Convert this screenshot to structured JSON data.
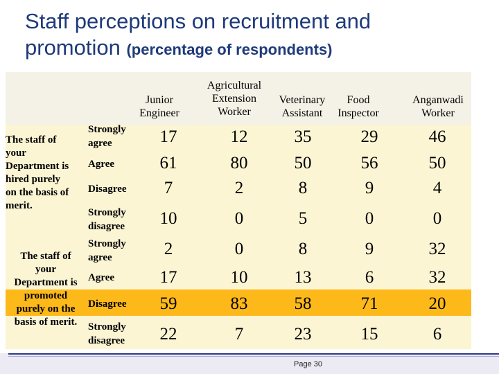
{
  "title": {
    "line1": "Staff perceptions  on recruitment and",
    "line2_big": "promotion ",
    "line2_small": "(percentage of respondents)"
  },
  "columns": [
    "Junior Engineer",
    "Agricultural Extension Worker",
    "Veterinary Assistant",
    "Food Inspector",
    "Anganwadi Worker"
  ],
  "header_lines": {
    "junior": [
      "Junior",
      "Engineer"
    ],
    "agri": [
      "Agricultural",
      "Extension",
      "Worker"
    ],
    "vet": [
      "Veterinary",
      "Assistant"
    ],
    "food": [
      "Food",
      "Inspector"
    ],
    "angan": [
      "Anganwadi",
      "Worker"
    ]
  },
  "groups": [
    {
      "category_lines": [
        "The staff of",
        "your",
        "Department is",
        "hired purely",
        "on the basis of",
        "merit."
      ],
      "rows": [
        {
          "response": "Strongly agree",
          "values": [
            17,
            12,
            35,
            29,
            46
          ]
        },
        {
          "response": "Agree",
          "values": [
            61,
            80,
            50,
            56,
            50
          ]
        },
        {
          "response": "Disagree",
          "values": [
            7,
            2,
            8,
            9,
            4
          ]
        },
        {
          "response": "Strongly disagree",
          "values": [
            10,
            0,
            5,
            0,
            0
          ]
        }
      ]
    },
    {
      "category_lines": [
        "The staff of",
        "your",
        "Department is",
        "promoted",
        "purely on the",
        "basis of merit."
      ],
      "rows": [
        {
          "response": "Strongly agree",
          "values": [
            2,
            0,
            8,
            9,
            32
          ]
        },
        {
          "response": "Agree",
          "values": [
            17,
            10,
            13,
            6,
            32
          ]
        },
        {
          "response": "Disagree",
          "values": [
            59,
            83,
            58,
            71,
            20
          ]
        },
        {
          "response": "Strongly disagree",
          "values": [
            22,
            7,
            23,
            15,
            6
          ]
        }
      ]
    }
  ],
  "footer": {
    "page": "Page 30"
  },
  "colors": {
    "title": "#1f3a7a",
    "cream": "#fbf5d4",
    "gold": "#fdb81a",
    "header": "#f4f1e6"
  }
}
